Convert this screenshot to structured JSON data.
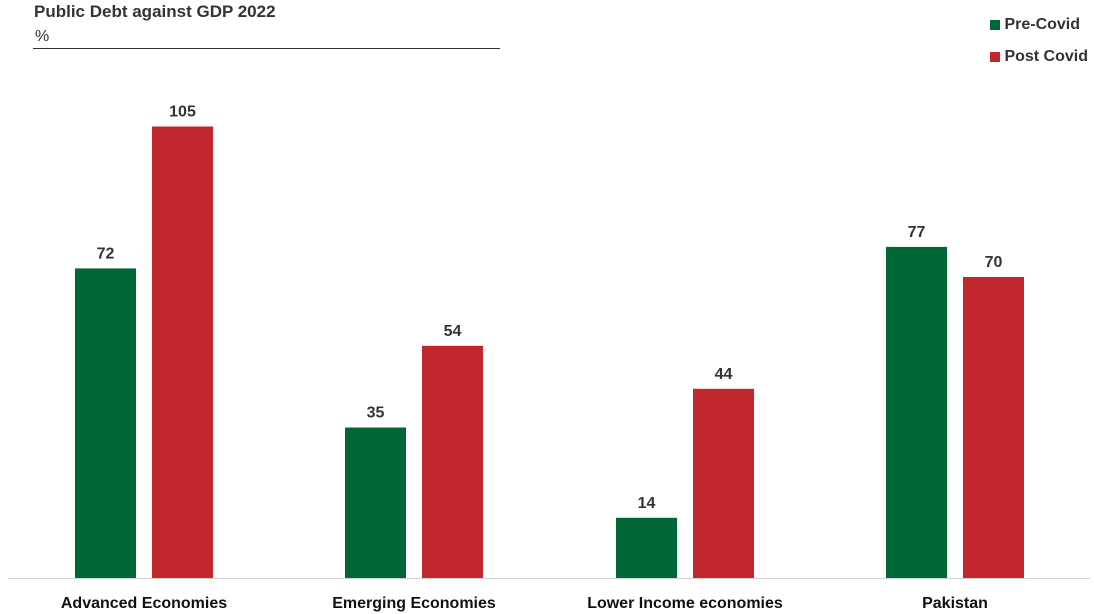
{
  "chart_data": {
    "type": "bar",
    "title": "Public Debt against GDP 2022",
    "unit": "%",
    "categories": [
      "Advanced Economies",
      "Emerging Economies",
      "Lower Income economies",
      "Pakistan"
    ],
    "series": [
      {
        "name": "Pre-Covid",
        "color": "#006837",
        "values": [
          72,
          35,
          14,
          77
        ]
      },
      {
        "name": "Post Covid",
        "color": "#c1272d",
        "values": [
          105,
          54,
          44,
          70
        ]
      }
    ],
    "ylim": [
      0,
      110
    ],
    "grid": false,
    "data_labels": true,
    "legend_position": "top-right"
  }
}
